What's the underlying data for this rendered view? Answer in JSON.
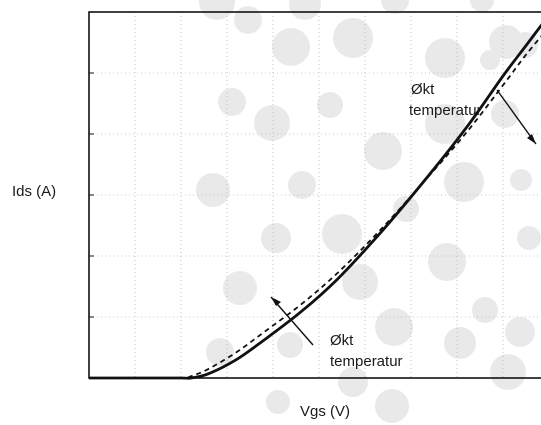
{
  "chart_data": {
    "type": "line",
    "title": "",
    "xlabel": "Vgs (V)",
    "ylabel": "Ids (A)",
    "xlim": [
      0,
      10
    ],
    "ylim": [
      0,
      6
    ],
    "grid": true,
    "background_dots": true,
    "series": [
      {
        "style": "solid",
        "color": "#111111",
        "x": [
          0.0,
          1.0,
          2.0,
          2.22,
          2.6,
          3.2,
          3.8,
          4.6,
          5.4,
          6.3,
          7.2,
          8.2,
          9.0,
          9.5,
          10.0
        ],
        "y": [
          0.0,
          0.0,
          0.0,
          0.0,
          0.07,
          0.3,
          0.62,
          1.08,
          1.62,
          2.35,
          3.15,
          4.1,
          4.95,
          5.45,
          5.95
        ]
      },
      {
        "style": "dashed",
        "color": "#111111",
        "x": [
          0.0,
          1.0,
          2.0,
          2.22,
          2.6,
          3.2,
          3.8,
          4.6,
          5.4,
          6.3,
          7.2,
          8.2,
          9.0,
          9.5,
          10.0
        ],
        "y": [
          0.0,
          0.0,
          0.0,
          0.03,
          0.15,
          0.42,
          0.75,
          1.2,
          1.72,
          2.4,
          3.15,
          4.02,
          4.8,
          5.3,
          5.75
        ]
      }
    ],
    "annotations": [
      {
        "text_lines": [
          "Økt",
          "temperatur"
        ]
      },
      {
        "text_lines": [
          "Økt",
          "temperatur"
        ]
      }
    ]
  }
}
